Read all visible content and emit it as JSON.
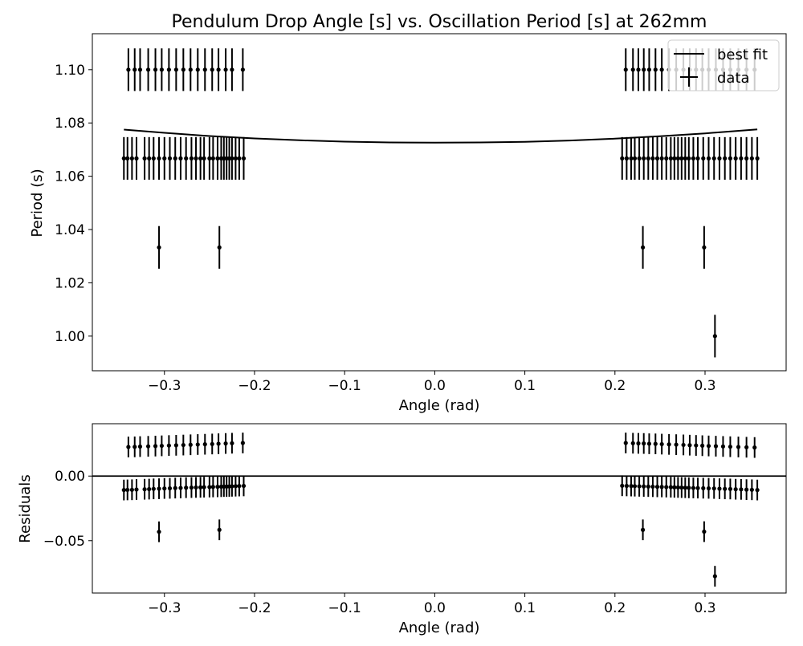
{
  "chart_data": [
    {
      "type": "scatter",
      "title": "Pendulum Drop Angle [s] vs. Oscillation Period [s] at 262mm",
      "xlabel": "Angle (rad)",
      "ylabel": "Period (s)",
      "xlim": [
        -0.38,
        0.39
      ],
      "ylim": [
        0.987,
        1.1135
      ],
      "xticks": [
        -0.3,
        -0.2,
        -0.1,
        0.0,
        0.1,
        0.2,
        0.3
      ],
      "xtick_labels": [
        "−0.3",
        "−0.2",
        "−0.1",
        "0.0",
        "0.1",
        "0.2",
        "0.3"
      ],
      "yticks": [
        1.0,
        1.02,
        1.04,
        1.06,
        1.08,
        1.1
      ],
      "ytick_labels": [
        "1.00",
        "1.02",
        "1.04",
        "1.06",
        "1.08",
        "1.10"
      ],
      "legend": {
        "position": "top-right",
        "entries": [
          "best fit",
          "data"
        ]
      },
      "grid": false,
      "y_error": 0.008,
      "fit": {
        "name": "best fit",
        "x": [
          -0.345,
          -0.3,
          -0.25,
          -0.2,
          -0.15,
          -0.1,
          -0.05,
          0.0,
          0.05,
          0.1,
          0.15,
          0.2,
          0.25,
          0.3,
          0.358
        ],
        "y": [
          1.0775,
          1.0763,
          1.0751,
          1.0742,
          1.0735,
          1.073,
          1.0727,
          1.0726,
          1.0727,
          1.0729,
          1.0734,
          1.0741,
          1.075,
          1.0761,
          1.0776
        ]
      },
      "series": [
        {
          "name": "data",
          "points": [
            [
              -0.34,
              1.1
            ],
            [
              -0.333,
              1.1
            ],
            [
              -0.327,
              1.1
            ],
            [
              -0.318,
              1.1
            ],
            [
              -0.31,
              1.1
            ],
            [
              -0.303,
              1.1
            ],
            [
              -0.295,
              1.1
            ],
            [
              -0.287,
              1.1
            ],
            [
              -0.279,
              1.1
            ],
            [
              -0.271,
              1.1
            ],
            [
              -0.263,
              1.1
            ],
            [
              -0.255,
              1.1
            ],
            [
              -0.247,
              1.1
            ],
            [
              -0.24,
              1.1
            ],
            [
              -0.232,
              1.1
            ],
            [
              -0.225,
              1.1
            ],
            [
              -0.213,
              1.1
            ],
            [
              -0.345,
              1.0667
            ],
            [
              -0.341,
              1.0667
            ],
            [
              -0.336,
              1.0667
            ],
            [
              -0.331,
              1.0667
            ],
            [
              -0.322,
              1.0667
            ],
            [
              -0.317,
              1.0667
            ],
            [
              -0.312,
              1.0667
            ],
            [
              -0.306,
              1.0667
            ],
            [
              -0.3,
              1.0667
            ],
            [
              -0.294,
              1.0667
            ],
            [
              -0.288,
              1.0667
            ],
            [
              -0.282,
              1.0667
            ],
            [
              -0.276,
              1.0667
            ],
            [
              -0.27,
              1.0667
            ],
            [
              -0.265,
              1.0667
            ],
            [
              -0.26,
              1.0667
            ],
            [
              -0.256,
              1.0667
            ],
            [
              -0.25,
              1.0667
            ],
            [
              -0.246,
              1.0667
            ],
            [
              -0.241,
              1.0667
            ],
            [
              -0.237,
              1.0667
            ],
            [
              -0.234,
              1.0667
            ],
            [
              -0.231,
              1.0667
            ],
            [
              -0.228,
              1.0667
            ],
            [
              -0.225,
              1.0667
            ],
            [
              -0.221,
              1.0667
            ],
            [
              -0.217,
              1.0667
            ],
            [
              -0.212,
              1.0667
            ],
            [
              -0.306,
              1.0333
            ],
            [
              -0.239,
              1.0333
            ],
            [
              0.212,
              1.1
            ],
            [
              0.22,
              1.1
            ],
            [
              0.226,
              1.1
            ],
            [
              0.232,
              1.1
            ],
            [
              0.238,
              1.1
            ],
            [
              0.245,
              1.1
            ],
            [
              0.252,
              1.1
            ],
            [
              0.26,
              1.1
            ],
            [
              0.268,
              1.1
            ],
            [
              0.276,
              1.1
            ],
            [
              0.283,
              1.1
            ],
            [
              0.29,
              1.1
            ],
            [
              0.297,
              1.1
            ],
            [
              0.304,
              1.1
            ],
            [
              0.312,
              1.1
            ],
            [
              0.32,
              1.1
            ],
            [
              0.328,
              1.1
            ],
            [
              0.337,
              1.1
            ],
            [
              0.346,
              1.1
            ],
            [
              0.355,
              1.1
            ],
            [
              0.208,
              1.0667
            ],
            [
              0.213,
              1.0667
            ],
            [
              0.218,
              1.0667
            ],
            [
              0.222,
              1.0667
            ],
            [
              0.227,
              1.0667
            ],
            [
              0.232,
              1.0667
            ],
            [
              0.237,
              1.0667
            ],
            [
              0.242,
              1.0667
            ],
            [
              0.247,
              1.0667
            ],
            [
              0.252,
              1.0667
            ],
            [
              0.257,
              1.0667
            ],
            [
              0.262,
              1.0667
            ],
            [
              0.266,
              1.0667
            ],
            [
              0.27,
              1.0667
            ],
            [
              0.274,
              1.0667
            ],
            [
              0.278,
              1.0667
            ],
            [
              0.282,
              1.0667
            ],
            [
              0.287,
              1.0667
            ],
            [
              0.292,
              1.0667
            ],
            [
              0.298,
              1.0667
            ],
            [
              0.304,
              1.0667
            ],
            [
              0.31,
              1.0667
            ],
            [
              0.316,
              1.0667
            ],
            [
              0.322,
              1.0667
            ],
            [
              0.328,
              1.0667
            ],
            [
              0.334,
              1.0667
            ],
            [
              0.34,
              1.0667
            ],
            [
              0.346,
              1.0667
            ],
            [
              0.352,
              1.0667
            ],
            [
              0.358,
              1.0667
            ],
            [
              0.231,
              1.0333
            ],
            [
              0.299,
              1.0333
            ],
            [
              0.311,
              1.0
            ]
          ]
        }
      ]
    },
    {
      "type": "scatter",
      "title": "",
      "xlabel": "Angle (rad)",
      "ylabel": "Residuals",
      "xlim": [
        -0.38,
        0.39
      ],
      "ylim": [
        -0.0905,
        0.0405
      ],
      "xticks": [
        -0.3,
        -0.2,
        -0.1,
        0.0,
        0.1,
        0.2,
        0.3
      ],
      "xtick_labels": [
        "−0.3",
        "−0.2",
        "−0.1",
        "0.0",
        "0.1",
        "0.2",
        "0.3"
      ],
      "yticks": [
        -0.05,
        0.0
      ],
      "ytick_labels": [
        "−0.05",
        "0.00"
      ],
      "grid": false,
      "y_error": 0.008,
      "zero_line": 0.0,
      "series": [
        {
          "name": "",
          "points": [
            [
              -0.34,
              0.0225
            ],
            [
              -0.333,
              0.0226
            ],
            [
              -0.327,
              0.0228
            ],
            [
              -0.318,
              0.023
            ],
            [
              -0.31,
              0.0232
            ],
            [
              -0.303,
              0.0234
            ],
            [
              -0.295,
              0.0236
            ],
            [
              -0.287,
              0.0238
            ],
            [
              -0.279,
              0.024
            ],
            [
              -0.271,
              0.0242
            ],
            [
              -0.263,
              0.0244
            ],
            [
              -0.255,
              0.0246
            ],
            [
              -0.247,
              0.0248
            ],
            [
              -0.24,
              0.025
            ],
            [
              -0.232,
              0.0252
            ],
            [
              -0.225,
              0.0254
            ],
            [
              -0.213,
              0.0256
            ],
            [
              -0.345,
              -0.0108
            ],
            [
              -0.341,
              -0.0107
            ],
            [
              -0.336,
              -0.0106
            ],
            [
              -0.331,
              -0.0104
            ],
            [
              -0.322,
              -0.0102
            ],
            [
              -0.317,
              -0.0101
            ],
            [
              -0.312,
              -0.0099
            ],
            [
              -0.306,
              -0.0098
            ],
            [
              -0.3,
              -0.0096
            ],
            [
              -0.294,
              -0.0095
            ],
            [
              -0.288,
              -0.0093
            ],
            [
              -0.282,
              -0.0092
            ],
            [
              -0.276,
              -0.009
            ],
            [
              -0.27,
              -0.0089
            ],
            [
              -0.265,
              -0.0088
            ],
            [
              -0.26,
              -0.0087
            ],
            [
              -0.256,
              -0.0086
            ],
            [
              -0.25,
              -0.0085
            ],
            [
              -0.246,
              -0.0084
            ],
            [
              -0.241,
              -0.0083
            ],
            [
              -0.237,
              -0.0082
            ],
            [
              -0.234,
              -0.0081
            ],
            [
              -0.231,
              -0.0081
            ],
            [
              -0.228,
              -0.008
            ],
            [
              -0.225,
              -0.0079
            ],
            [
              -0.221,
              -0.0078
            ],
            [
              -0.217,
              -0.0077
            ],
            [
              -0.212,
              -0.0076
            ],
            [
              -0.306,
              -0.0431
            ],
            [
              -0.239,
              -0.0416
            ],
            [
              0.212,
              0.0256
            ],
            [
              0.22,
              0.0254
            ],
            [
              0.226,
              0.0253
            ],
            [
              0.232,
              0.0252
            ],
            [
              0.238,
              0.025
            ],
            [
              0.245,
              0.0249
            ],
            [
              0.252,
              0.0247
            ],
            [
              0.26,
              0.0245
            ],
            [
              0.268,
              0.0243
            ],
            [
              0.276,
              0.0241
            ],
            [
              0.283,
              0.0239
            ],
            [
              0.29,
              0.0237
            ],
            [
              0.297,
              0.0235
            ],
            [
              0.304,
              0.0233
            ],
            [
              0.312,
              0.0231
            ],
            [
              0.32,
              0.0229
            ],
            [
              0.328,
              0.0227
            ],
            [
              0.337,
              0.0225
            ],
            [
              0.346,
              0.0223
            ],
            [
              0.355,
              0.0221
            ],
            [
              0.208,
              -0.0075
            ],
            [
              0.213,
              -0.0076
            ],
            [
              0.218,
              -0.0077
            ],
            [
              0.222,
              -0.0078
            ],
            [
              0.227,
              -0.0079
            ],
            [
              0.232,
              -0.008
            ],
            [
              0.237,
              -0.0081
            ],
            [
              0.242,
              -0.0082
            ],
            [
              0.247,
              -0.0083
            ],
            [
              0.252,
              -0.0084
            ],
            [
              0.257,
              -0.0085
            ],
            [
              0.262,
              -0.0086
            ],
            [
              0.266,
              -0.0087
            ],
            [
              0.27,
              -0.0088
            ],
            [
              0.274,
              -0.0089
            ],
            [
              0.278,
              -0.009
            ],
            [
              0.282,
              -0.0091
            ],
            [
              0.287,
              -0.0092
            ],
            [
              0.292,
              -0.0093
            ],
            [
              0.298,
              -0.0094
            ],
            [
              0.304,
              -0.0095
            ],
            [
              0.31,
              -0.0096
            ],
            [
              0.316,
              -0.0098
            ],
            [
              0.322,
              -0.0099
            ],
            [
              0.328,
              -0.01
            ],
            [
              0.334,
              -0.0102
            ],
            [
              0.34,
              -0.0103
            ],
            [
              0.346,
              -0.0105
            ],
            [
              0.352,
              -0.0106
            ],
            [
              0.358,
              -0.0108
            ],
            [
              0.231,
              -0.0416
            ],
            [
              0.299,
              -0.043
            ],
            [
              0.311,
              -0.0775
            ]
          ]
        }
      ]
    }
  ]
}
